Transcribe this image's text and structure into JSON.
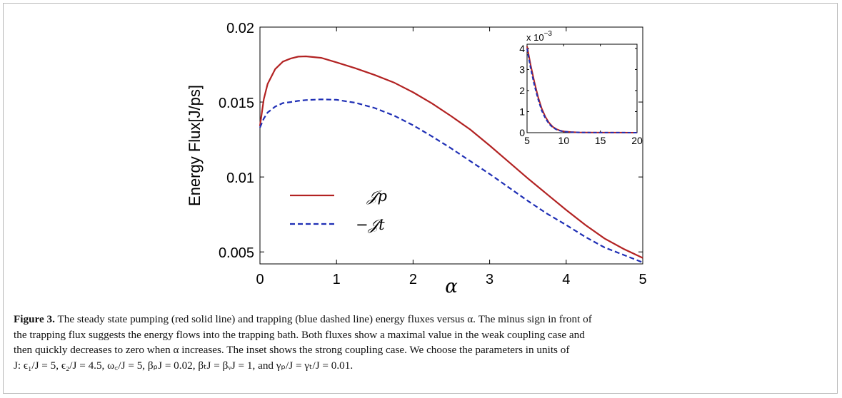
{
  "figure": {
    "ylabel": "Energy Flux[J/ps]",
    "xlabel": "α",
    "legend": [
      {
        "label": "𝒥p",
        "color": "#b22222",
        "style": "solid"
      },
      {
        "label": "−𝒥t",
        "color": "#1f2fb5",
        "style": "dashed"
      }
    ],
    "inset_exponent": "x 10",
    "inset_exponent_power": "−3"
  },
  "chart_data": [
    {
      "type": "line",
      "title": "",
      "xlabel": "α",
      "ylabel": "Energy Flux[J/ps]",
      "xlim": [
        0,
        5
      ],
      "ylim": [
        0.0042,
        0.02
      ],
      "xticks": [
        "0",
        "1",
        "2",
        "3",
        "4",
        "5"
      ],
      "yticks": [
        "0.005",
        "0.01",
        "0.015",
        "0.02"
      ],
      "grid": false,
      "legend_position": "lower-left",
      "series": [
        {
          "name": "𝒥p",
          "color": "#b22222",
          "style": "solid",
          "x": [
            0,
            0.05,
            0.1,
            0.2,
            0.3,
            0.4,
            0.5,
            0.6,
            0.8,
            1.0,
            1.25,
            1.5,
            1.75,
            2.0,
            2.25,
            2.5,
            2.75,
            3.0,
            3.25,
            3.5,
            3.75,
            4.0,
            4.25,
            4.5,
            4.75,
            5.0
          ],
          "y": [
            0.0134,
            0.0152,
            0.0162,
            0.0172,
            0.0177,
            0.0179,
            0.01803,
            0.01805,
            0.01795,
            0.01765,
            0.01725,
            0.0168,
            0.0163,
            0.01565,
            0.0149,
            0.01405,
            0.01315,
            0.0121,
            0.011,
            0.0099,
            0.00885,
            0.0078,
            0.0068,
            0.0059,
            0.0052,
            0.0046
          ]
        },
        {
          "name": "−𝒥t",
          "color": "#1f2fb5",
          "style": "dashed",
          "x": [
            0,
            0.05,
            0.1,
            0.2,
            0.3,
            0.4,
            0.5,
            0.6,
            0.8,
            1.0,
            1.25,
            1.5,
            1.75,
            2.0,
            2.25,
            2.5,
            2.75,
            3.0,
            3.25,
            3.5,
            3.75,
            4.0,
            4.25,
            4.5,
            4.75,
            5.0
          ],
          "y": [
            0.0133,
            0.0139,
            0.0143,
            0.0147,
            0.01493,
            0.015,
            0.01508,
            0.01513,
            0.01518,
            0.01515,
            0.01495,
            0.0146,
            0.0141,
            0.01345,
            0.0127,
            0.0119,
            0.01105,
            0.0102,
            0.0093,
            0.0084,
            0.00755,
            0.0068,
            0.006,
            0.0053,
            0.0048,
            0.0043
          ]
        }
      ]
    },
    {
      "type": "line",
      "title": "",
      "xlabel": "",
      "ylabel": "",
      "xlim": [
        5,
        20
      ],
      "ylim": [
        0,
        4.2
      ],
      "xticks": [
        "5",
        "10",
        "15",
        "20"
      ],
      "yticks": [
        "0",
        "1",
        "2",
        "3",
        "4"
      ],
      "y_multiplier": "x 10^-3",
      "grid": false,
      "series": [
        {
          "name": "𝒥p",
          "color": "#b22222",
          "style": "solid",
          "x": [
            5,
            5.5,
            6,
            6.5,
            7,
            7.5,
            8,
            8.5,
            9,
            9.5,
            10,
            11,
            12,
            13,
            15,
            17.5,
            20
          ],
          "y": [
            4.1,
            3.2,
            2.4,
            1.7,
            1.15,
            0.75,
            0.47,
            0.28,
            0.17,
            0.1,
            0.06,
            0.03,
            0.015,
            0.01,
            0.005,
            0.002,
            0.001
          ]
        },
        {
          "name": "−𝒥t",
          "color": "#1f2fb5",
          "style": "dashed",
          "x": [
            5,
            5.5,
            6,
            6.5,
            7,
            7.5,
            8,
            8.5,
            9,
            9.5,
            10,
            11,
            12,
            13,
            15,
            17.5,
            20
          ],
          "y": [
            4.0,
            3.05,
            2.25,
            1.6,
            1.05,
            0.68,
            0.42,
            0.25,
            0.15,
            0.09,
            0.05,
            0.025,
            0.012,
            0.008,
            0.004,
            0.002,
            0.001
          ]
        }
      ]
    }
  ],
  "caption": {
    "label": "Figure 3.",
    "line1": " The steady state pumping (red solid line) and trapping (blue dashed line) energy fluxes versus α. The minus sign in front of",
    "line2": "the trapping flux suggests the energy flows into the trapping bath. Both fluxes show a maximal value in the weak coupling case and",
    "line3": "then quickly decreases to zero when α increases. The inset shows the strong coupling case. We choose the parameters in units of",
    "line4": "J: ϵ₁/J = 5, ϵ₂/J = 4.5, ω꜀/J = 5, βₚJ = 0.02, βₜJ = βᵥJ = 1, and γₚ/J = γₜ/J = 0.01."
  }
}
